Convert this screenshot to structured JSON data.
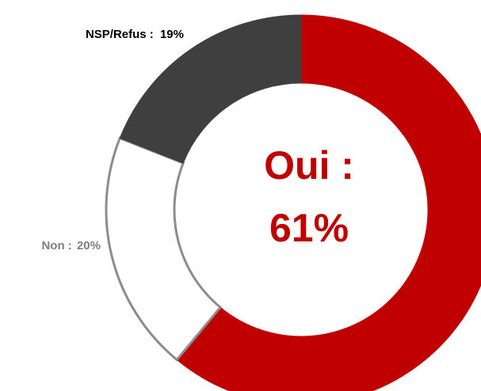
{
  "chart_data": {
    "type": "donut",
    "categories": [
      "Oui :",
      "Non :",
      "NSP/Refus :"
    ],
    "values": [
      61,
      20,
      19
    ],
    "value_labels": [
      "61%",
      "20%",
      "19%"
    ],
    "colors": [
      "#c00000",
      "#ffffff",
      "#3f3f3f"
    ]
  }
}
